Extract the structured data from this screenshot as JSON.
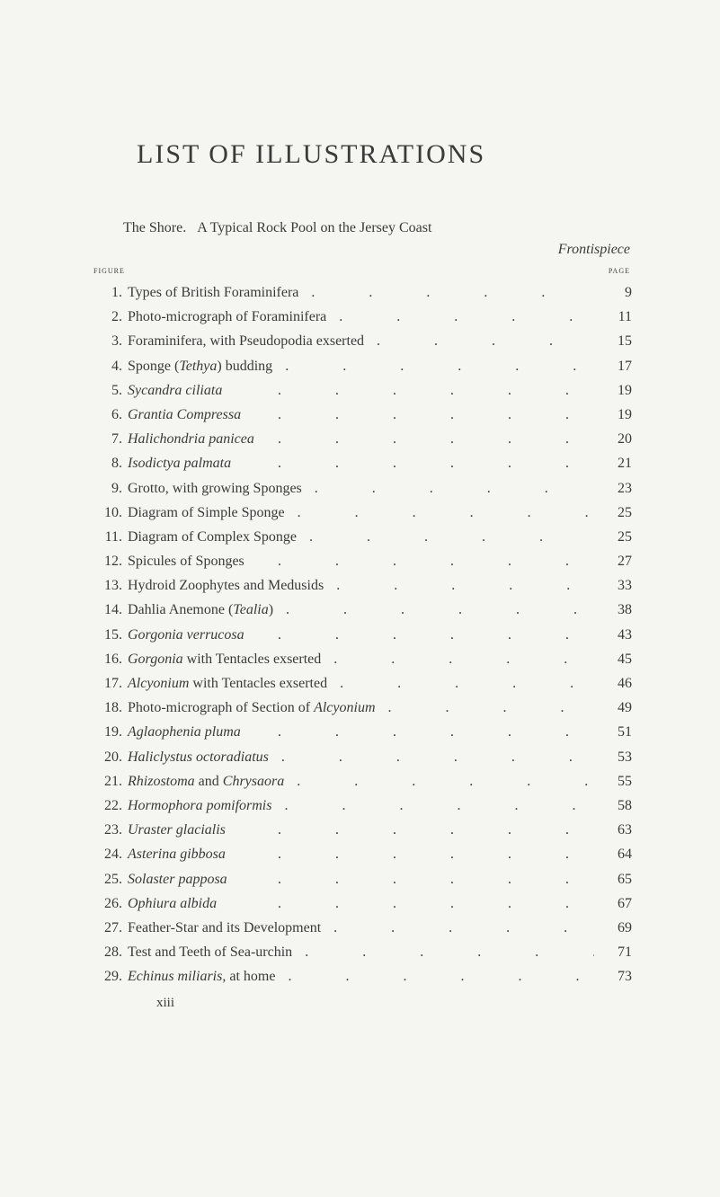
{
  "title": "LIST OF ILLUSTRATIONS",
  "shore_line_prefix": "The Shore.",
  "shore_line_rest": "A Typical Rock Pool on the Jersey Coast",
  "frontispiece": "Frontispiece",
  "header_figure": "figure",
  "header_page": "page",
  "entries": [
    {
      "num": "1",
      "parts": [
        {
          "t": "Types of British Foraminifera"
        }
      ],
      "page": "9"
    },
    {
      "num": "2",
      "parts": [
        {
          "t": "Photo-micrograph of Foraminifera"
        }
      ],
      "page": "11"
    },
    {
      "num": "3",
      "parts": [
        {
          "t": "Foraminifera, with Pseudopodia exserted"
        }
      ],
      "page": "15"
    },
    {
      "num": "4",
      "parts": [
        {
          "t": "Sponge ("
        },
        {
          "t": "Tethya",
          "i": true
        },
        {
          "t": ") budding"
        }
      ],
      "page": "17"
    },
    {
      "num": "5",
      "parts": [
        {
          "t": "Sycandra ciliata",
          "i": true
        }
      ],
      "page": "19"
    },
    {
      "num": "6",
      "parts": [
        {
          "t": "Grantia Compressa",
          "i": true
        }
      ],
      "page": "19"
    },
    {
      "num": "7",
      "parts": [
        {
          "t": "Halichondria panicea",
          "i": true
        }
      ],
      "page": "20"
    },
    {
      "num": "8",
      "parts": [
        {
          "t": "Isodictya palmata",
          "i": true
        }
      ],
      "page": "21"
    },
    {
      "num": "9",
      "parts": [
        {
          "t": "Grotto, with growing Sponges"
        }
      ],
      "page": "23"
    },
    {
      "num": "10",
      "parts": [
        {
          "t": "Diagram of Simple Sponge"
        }
      ],
      "page": "25"
    },
    {
      "num": "11",
      "parts": [
        {
          "t": "Diagram of Complex Sponge"
        }
      ],
      "page": "25"
    },
    {
      "num": "12",
      "parts": [
        {
          "t": "Spicules of Sponges"
        }
      ],
      "page": "27"
    },
    {
      "num": "13",
      "parts": [
        {
          "t": "Hydroid Zoophytes and Medusids"
        }
      ],
      "page": "33"
    },
    {
      "num": "14",
      "parts": [
        {
          "t": "Dahlia Anemone ("
        },
        {
          "t": "Tealia",
          "i": true
        },
        {
          "t": ")"
        }
      ],
      "page": "38"
    },
    {
      "num": "15",
      "parts": [
        {
          "t": "Gorgonia verrucosa",
          "i": true
        }
      ],
      "page": "43"
    },
    {
      "num": "16",
      "parts": [
        {
          "t": "Gorgonia",
          "i": true
        },
        {
          "t": " with Tentacles exserted"
        }
      ],
      "page": "45"
    },
    {
      "num": "17",
      "parts": [
        {
          "t": "Alcyonium",
          "i": true
        },
        {
          "t": " with Tentacles exserted"
        }
      ],
      "page": "46"
    },
    {
      "num": "18",
      "parts": [
        {
          "t": "Photo-micrograph of Section of "
        },
        {
          "t": "Alcyonium",
          "i": true
        }
      ],
      "page": "49"
    },
    {
      "num": "19",
      "parts": [
        {
          "t": "Aglaophenia pluma",
          "i": true
        }
      ],
      "page": "51"
    },
    {
      "num": "20",
      "parts": [
        {
          "t": "Haliclystus octoradiatus",
          "i": true
        }
      ],
      "page": "53"
    },
    {
      "num": "21",
      "parts": [
        {
          "t": "Rhizostoma",
          "i": true
        },
        {
          "t": " and "
        },
        {
          "t": "Chrysaora",
          "i": true
        }
      ],
      "page": "55"
    },
    {
      "num": "22",
      "parts": [
        {
          "t": "Hormophora pomiformis",
          "i": true
        }
      ],
      "page": "58"
    },
    {
      "num": "23",
      "parts": [
        {
          "t": "Uraster glacialis",
          "i": true
        }
      ],
      "page": "63"
    },
    {
      "num": "24",
      "parts": [
        {
          "t": "Asterina gibbosa",
          "i": true
        }
      ],
      "page": "64"
    },
    {
      "num": "25",
      "parts": [
        {
          "t": "Solaster papposa",
          "i": true
        }
      ],
      "page": "65"
    },
    {
      "num": "26",
      "parts": [
        {
          "t": "Ophiura albida",
          "i": true
        }
      ],
      "page": "67"
    },
    {
      "num": "27",
      "parts": [
        {
          "t": "Feather-Star and its Development"
        }
      ],
      "page": "69"
    },
    {
      "num": "28",
      "parts": [
        {
          "t": "Test and Teeth of Sea-urchin"
        }
      ],
      "page": "71"
    },
    {
      "num": "29",
      "parts": [
        {
          "t": "Echinus miliaris",
          "i": true
        },
        {
          "t": ", at home"
        }
      ],
      "page": "73"
    }
  ],
  "roman_page": "xiii",
  "leader_dots": ". . . . . .",
  "colors": {
    "background": "#f5f5f2",
    "text": "#3a3a38"
  }
}
